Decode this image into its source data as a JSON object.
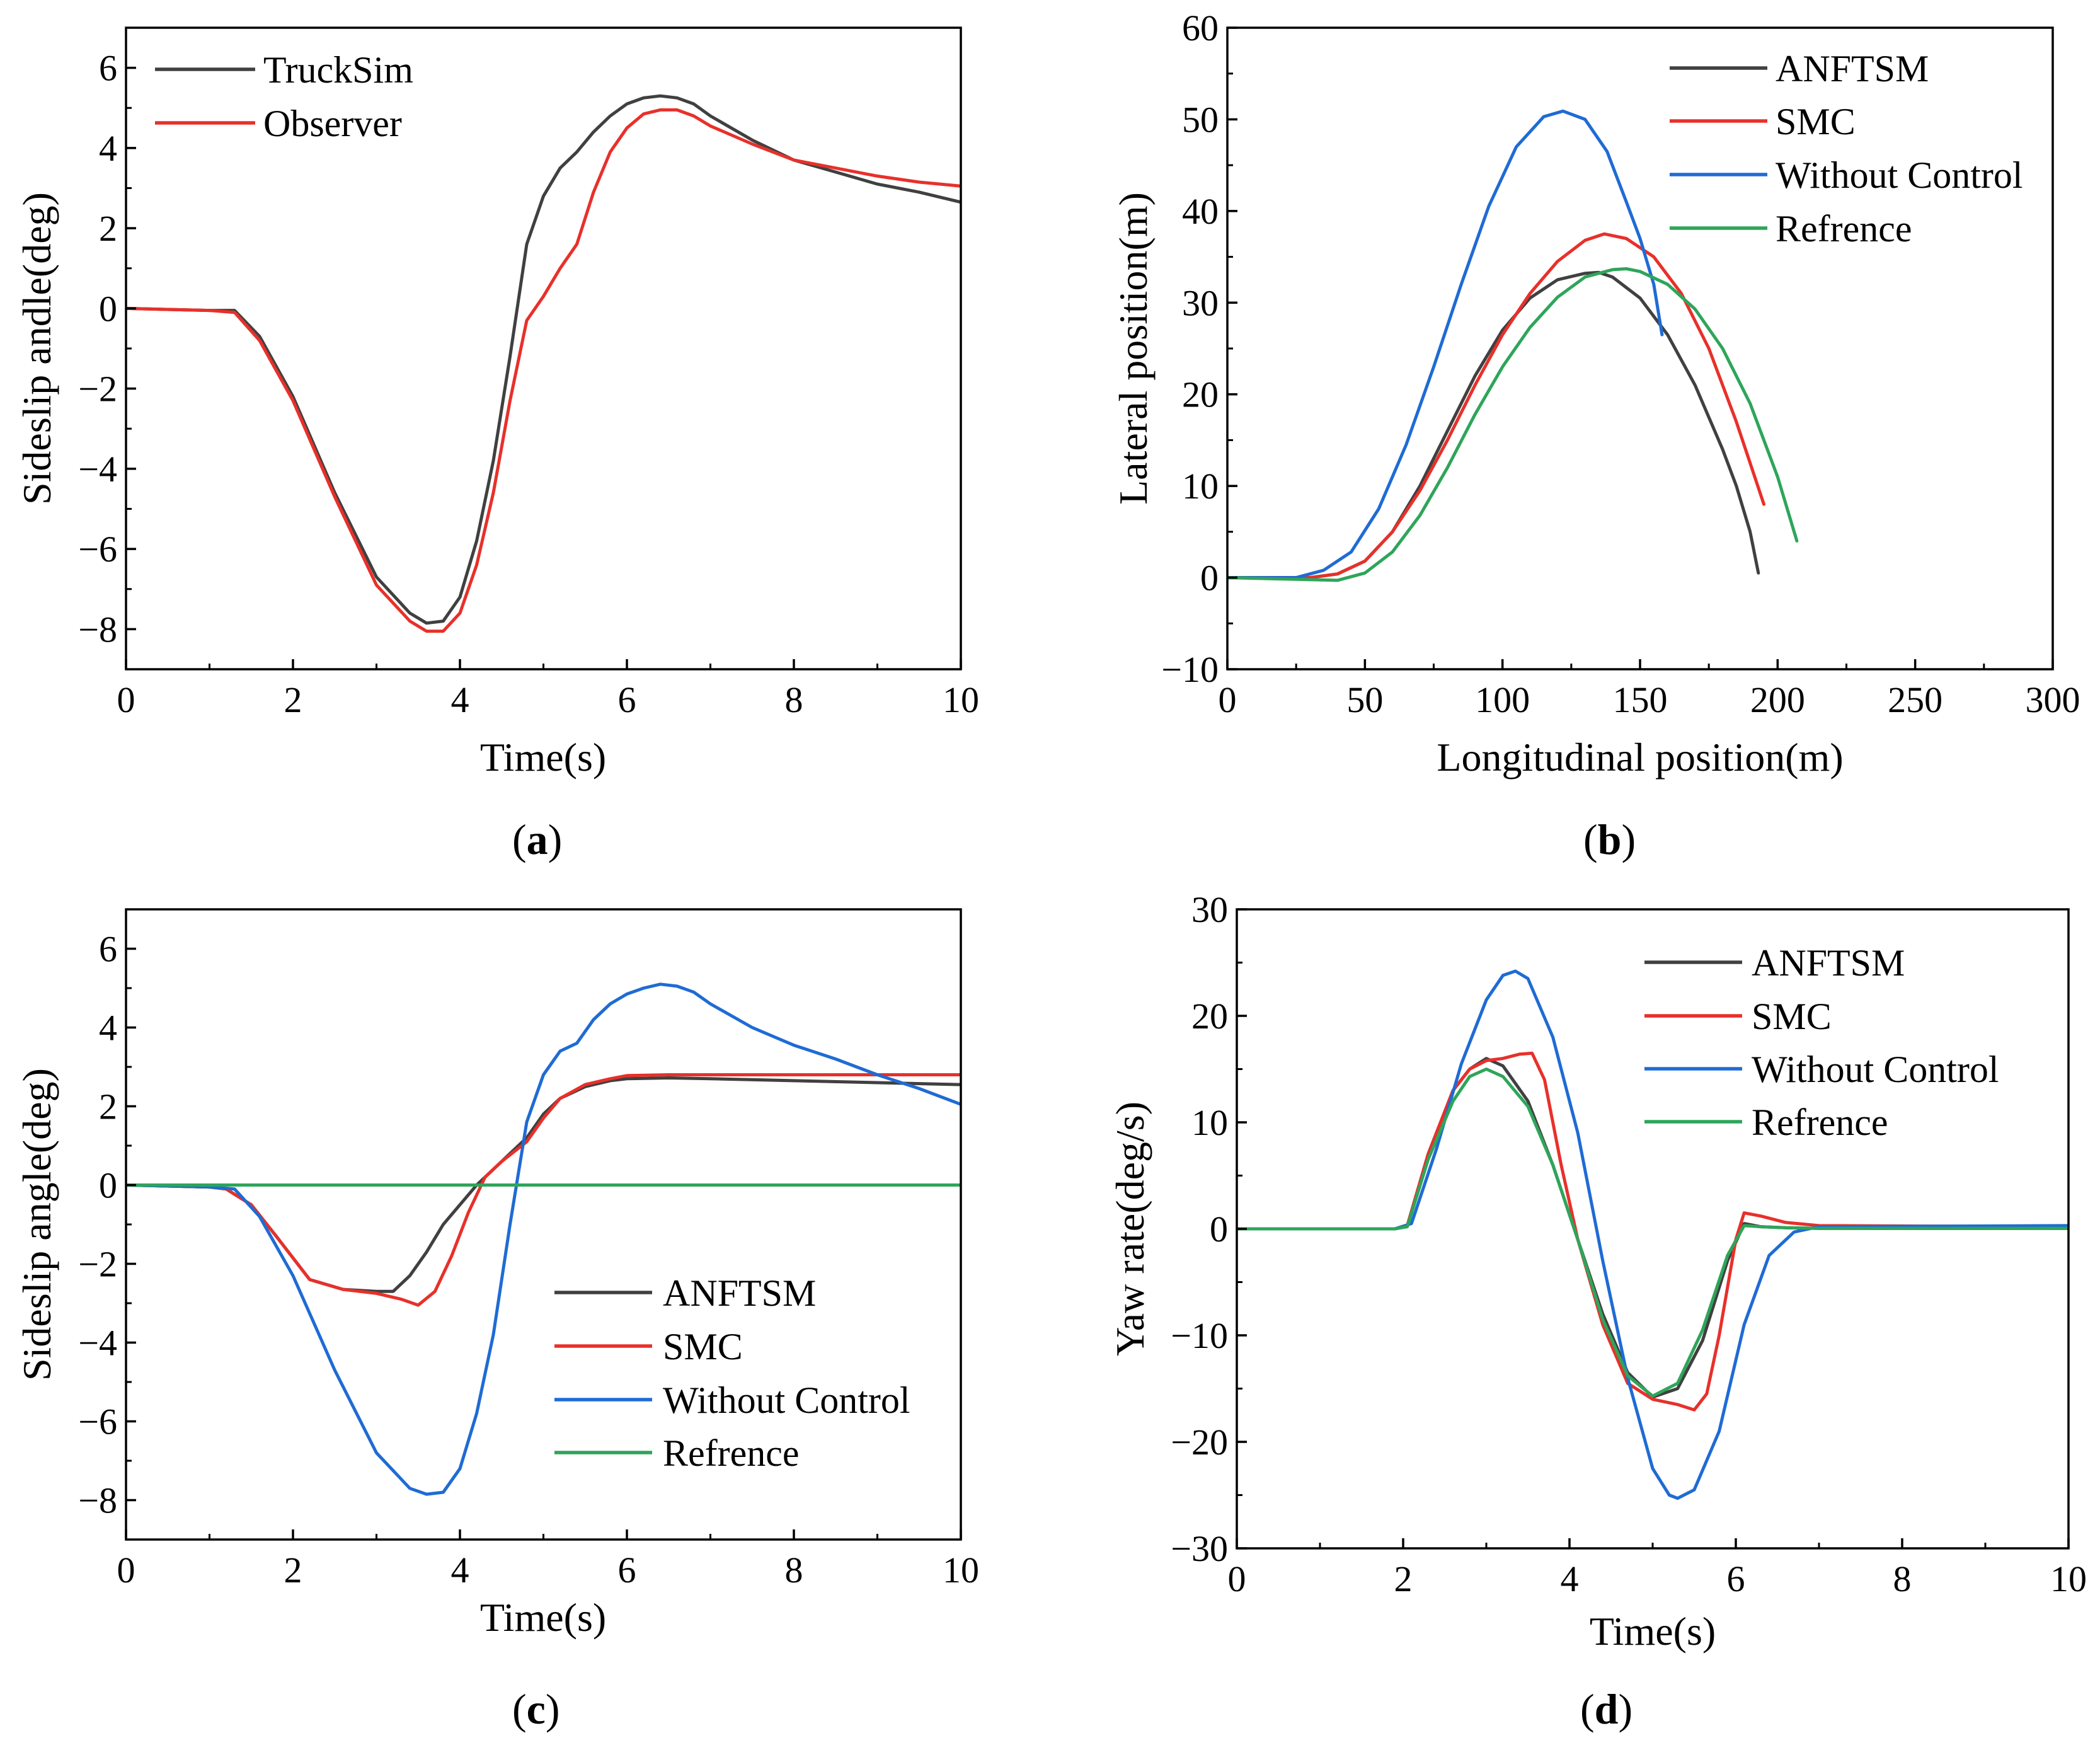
{
  "chart_data": [
    {
      "id": "a",
      "type": "line",
      "caption": "(a)",
      "caption_letter": "a",
      "xlabel": "Time(s)",
      "ylabel": "Sideslip andle(deg)",
      "xlim": [
        0,
        10
      ],
      "ylim": [
        -9,
        7
      ],
      "xticks": [
        0,
        2,
        4,
        6,
        8,
        10
      ],
      "yticks": [
        -8,
        -6,
        -4,
        -2,
        0,
        2,
        4,
        6
      ],
      "xtick_labels": [
        "0",
        "2",
        "4",
        "6",
        "8",
        "10"
      ],
      "ytick_labels": [
        "−8",
        "−6",
        "−4",
        "−2",
        "0",
        "2",
        "4",
        "6"
      ],
      "legend_position": "top-left",
      "series": [
        {
          "name": "TruckSim",
          "color": "#404040",
          "x": [
            0,
            1.0,
            1.3,
            1.6,
            2.0,
            2.5,
            3.0,
            3.4,
            3.6,
            3.8,
            4.0,
            4.2,
            4.4,
            4.6,
            4.8,
            5.0,
            5.2,
            5.4,
            5.6,
            5.8,
            6.0,
            6.2,
            6.4,
            6.6,
            6.8,
            7.0,
            7.5,
            8.0,
            8.5,
            9.0,
            9.5,
            10.0
          ],
          "y": [
            0,
            -0.05,
            -0.05,
            -0.7,
            -2.2,
            -4.6,
            -6.7,
            -7.6,
            -7.85,
            -7.8,
            -7.2,
            -5.8,
            -3.8,
            -1.2,
            1.6,
            2.8,
            3.5,
            3.9,
            4.4,
            4.8,
            5.1,
            5.25,
            5.3,
            5.25,
            5.1,
            4.8,
            4.2,
            3.7,
            3.4,
            3.1,
            2.9,
            2.65
          ]
        },
        {
          "name": "Observer",
          "color": "#e8302a",
          "x": [
            0,
            1.0,
            1.3,
            1.6,
            2.0,
            2.5,
            3.0,
            3.4,
            3.6,
            3.8,
            4.0,
            4.2,
            4.4,
            4.6,
            4.8,
            5.0,
            5.2,
            5.4,
            5.6,
            5.8,
            6.0,
            6.2,
            6.4,
            6.6,
            6.8,
            7.0,
            7.5,
            8.0,
            8.5,
            9.0,
            9.5,
            10.0
          ],
          "y": [
            0,
            -0.05,
            -0.1,
            -0.8,
            -2.3,
            -4.7,
            -6.9,
            -7.8,
            -8.05,
            -8.05,
            -7.6,
            -6.4,
            -4.6,
            -2.3,
            -0.3,
            0.3,
            1.0,
            1.6,
            2.9,
            3.9,
            4.5,
            4.85,
            4.95,
            4.95,
            4.8,
            4.55,
            4.1,
            3.7,
            3.5,
            3.3,
            3.15,
            3.05
          ]
        }
      ]
    },
    {
      "id": "b",
      "type": "line",
      "caption": "(b)",
      "caption_letter": "b",
      "xlabel": "Longitudinal position(m)",
      "ylabel": "Lateral position(m)",
      "xlim": [
        0,
        300
      ],
      "ylim": [
        -10,
        60
      ],
      "xticks": [
        0,
        50,
        100,
        150,
        200,
        250,
        300
      ],
      "yticks": [
        -10,
        0,
        10,
        20,
        30,
        40,
        50,
        60
      ],
      "xtick_labels": [
        "0",
        "50",
        "100",
        "150",
        "200",
        "250",
        "300"
      ],
      "ytick_labels": [
        "−10",
        "0",
        "10",
        "20",
        "30",
        "40",
        "50",
        "60"
      ],
      "legend_position": "top-right",
      "series": [
        {
          "name": "ANFTSM",
          "color": "#404040",
          "x": [
            0,
            30,
            40,
            50,
            60,
            70,
            80,
            90,
            100,
            110,
            120,
            130,
            135,
            140,
            150,
            160,
            170,
            180,
            185,
            190,
            193
          ],
          "y": [
            0,
            0,
            0.4,
            1.8,
            5,
            10,
            16,
            22,
            27,
            30.5,
            32.5,
            33.2,
            33.3,
            32.8,
            30.5,
            26.5,
            21,
            14,
            10,
            5,
            0.5
          ]
        },
        {
          "name": "SMC",
          "color": "#e8302a",
          "x": [
            0,
            30,
            40,
            50,
            60,
            70,
            80,
            90,
            100,
            110,
            120,
            130,
            137,
            145,
            155,
            165,
            175,
            185,
            190,
            195
          ],
          "y": [
            0,
            0,
            0.4,
            1.8,
            5,
            9.5,
            15,
            21,
            26.5,
            31,
            34.5,
            36.8,
            37.5,
            37,
            35,
            31,
            25,
            17,
            12.5,
            8
          ]
        },
        {
          "name": "Without Control",
          "color": "#1f6bd4",
          "x": [
            0,
            25,
            35,
            45,
            55,
            65,
            75,
            85,
            95,
            105,
            115,
            122,
            130,
            138,
            145,
            150,
            155,
            158
          ],
          "y": [
            0,
            0,
            0.8,
            2.8,
            7.5,
            14.5,
            23,
            32,
            40.5,
            47,
            50.3,
            50.9,
            50,
            46.5,
            41,
            37,
            32,
            26.5
          ]
        },
        {
          "name": "Refrence",
          "color": "#2ea55a",
          "x": [
            0,
            40,
            50,
            60,
            70,
            80,
            90,
            100,
            110,
            120,
            130,
            140,
            145,
            150,
            160,
            170,
            180,
            190,
            200,
            207
          ],
          "y": [
            0,
            -0.3,
            0.5,
            2.8,
            6.8,
            12,
            17.8,
            23,
            27.3,
            30.6,
            32.8,
            33.6,
            33.7,
            33.4,
            32,
            29.3,
            25,
            19,
            11,
            4
          ]
        }
      ]
    },
    {
      "id": "c",
      "type": "line",
      "caption": "(c)",
      "caption_letter": "c",
      "xlabel": "Time(s)",
      "ylabel": "Sideslip angle(deg)",
      "xlim": [
        0,
        10
      ],
      "ylim": [
        -9,
        7
      ],
      "xticks": [
        0,
        2,
        4,
        6,
        8,
        10
      ],
      "yticks": [
        -8,
        -6,
        -4,
        -2,
        0,
        2,
        4,
        6
      ],
      "xtick_labels": [
        "0",
        "2",
        "4",
        "6",
        "8",
        "10"
      ],
      "ytick_labels": [
        "−8",
        "−6",
        "−4",
        "−2",
        "0",
        "2",
        "4",
        "6"
      ],
      "legend_position": "lower-right",
      "series": [
        {
          "name": "ANFTSM",
          "color": "#404040",
          "x": [
            0,
            1.0,
            1.2,
            1.5,
            1.8,
            2.2,
            2.6,
            3.0,
            3.2,
            3.4,
            3.6,
            3.8,
            4.0,
            4.2,
            4.5,
            4.8,
            5.0,
            5.2,
            5.5,
            5.8,
            6.0,
            6.5,
            7.0,
            8.0,
            9.0,
            10.0
          ],
          "y": [
            0,
            -0.05,
            -0.1,
            -0.5,
            -1.3,
            -2.4,
            -2.65,
            -2.7,
            -2.7,
            -2.3,
            -1.7,
            -1.0,
            -0.5,
            0,
            0.6,
            1.2,
            1.8,
            2.2,
            2.5,
            2.65,
            2.7,
            2.72,
            2.7,
            2.65,
            2.6,
            2.55
          ]
        },
        {
          "name": "SMC",
          "color": "#e8302a",
          "x": [
            0,
            1.0,
            1.2,
            1.5,
            1.8,
            2.2,
            2.6,
            3.0,
            3.3,
            3.5,
            3.7,
            3.9,
            4.1,
            4.3,
            4.5,
            4.8,
            5.0,
            5.2,
            5.5,
            5.8,
            6.0,
            6.5,
            7.0,
            8.0,
            9.0,
            10.0
          ],
          "y": [
            0,
            -0.05,
            -0.1,
            -0.5,
            -1.3,
            -2.4,
            -2.65,
            -2.75,
            -2.9,
            -3.05,
            -2.7,
            -1.8,
            -0.7,
            0.2,
            0.6,
            1.1,
            1.7,
            2.2,
            2.55,
            2.7,
            2.78,
            2.8,
            2.8,
            2.8,
            2.8,
            2.8
          ]
        },
        {
          "name": "Without Control",
          "color": "#1f6bd4",
          "x": [
            0,
            1.0,
            1.3,
            1.6,
            2.0,
            2.5,
            3.0,
            3.4,
            3.6,
            3.8,
            4.0,
            4.2,
            4.4,
            4.6,
            4.8,
            5.0,
            5.2,
            5.4,
            5.6,
            5.8,
            6.0,
            6.2,
            6.4,
            6.6,
            6.8,
            7.0,
            7.5,
            8.0,
            8.5,
            9.0,
            9.5,
            10.0
          ],
          "y": [
            0,
            -0.05,
            -0.1,
            -0.8,
            -2.3,
            -4.7,
            -6.8,
            -7.7,
            -7.85,
            -7.8,
            -7.2,
            -5.8,
            -3.8,
            -1.0,
            1.6,
            2.8,
            3.4,
            3.6,
            4.2,
            4.6,
            4.85,
            5.0,
            5.1,
            5.05,
            4.9,
            4.6,
            4.0,
            3.55,
            3.2,
            2.8,
            2.45,
            2.05
          ]
        },
        {
          "name": "Refrence",
          "color": "#2ea55a",
          "x": [
            0,
            10
          ],
          "y": [
            0,
            0
          ]
        }
      ]
    },
    {
      "id": "d",
      "type": "line",
      "caption": "(d)",
      "caption_letter": "d",
      "xlabel": "Time(s)",
      "ylabel": "Yaw rate(deg/s)",
      "xlim": [
        0,
        10
      ],
      "ylim": [
        -30,
        30
      ],
      "xticks": [
        0,
        2,
        4,
        6,
        8,
        10
      ],
      "yticks": [
        -30,
        -20,
        -10,
        0,
        10,
        20,
        30
      ],
      "xtick_labels": [
        "0",
        "2",
        "4",
        "6",
        "8",
        "10"
      ],
      "ytick_labels": [
        "−30",
        "−20",
        "−10",
        "0",
        "10",
        "20",
        "30"
      ],
      "legend_position": "top-right",
      "series": [
        {
          "name": "ANFTSM",
          "color": "#404040",
          "x": [
            0,
            1.9,
            2.05,
            2.3,
            2.6,
            2.8,
            3.0,
            3.2,
            3.5,
            3.8,
            4.1,
            4.4,
            4.7,
            5.0,
            5.3,
            5.6,
            5.9,
            6.1,
            6.3,
            6.6,
            7.0,
            10.0
          ],
          "y": [
            0,
            0,
            0.3,
            7,
            13,
            15,
            16,
            15.3,
            12,
            6,
            -1,
            -8,
            -13.5,
            -15.8,
            -15,
            -10.5,
            -3,
            0.5,
            0.2,
            0.1,
            0.05,
            0.05
          ]
        },
        {
          "name": "SMC",
          "color": "#e8302a",
          "x": [
            0,
            1.9,
            2.05,
            2.3,
            2.6,
            2.8,
            3.0,
            3.2,
            3.4,
            3.55,
            3.7,
            3.9,
            4.1,
            4.4,
            4.7,
            5.0,
            5.3,
            5.5,
            5.65,
            5.8,
            6.0,
            6.1,
            6.3,
            6.6,
            7.0,
            10.0
          ],
          "y": [
            0,
            0,
            0.3,
            7,
            13,
            15,
            15.8,
            16,
            16.4,
            16.5,
            14,
            6,
            -1,
            -9,
            -14.5,
            -16,
            -16.5,
            -17,
            -15.5,
            -10,
            -1,
            1.5,
            1.2,
            0.6,
            0.3,
            0.2
          ]
        },
        {
          "name": "Without Control",
          "color": "#1f6bd4",
          "x": [
            0,
            1.9,
            2.1,
            2.4,
            2.7,
            3.0,
            3.2,
            3.35,
            3.5,
            3.8,
            4.1,
            4.4,
            4.7,
            5.0,
            5.2,
            5.3,
            5.5,
            5.8,
            6.1,
            6.4,
            6.7,
            7.0,
            10.0
          ],
          "y": [
            0,
            0,
            0.5,
            7.5,
            15.5,
            21.5,
            23.8,
            24.2,
            23.5,
            18,
            9,
            -3,
            -14,
            -22.5,
            -25,
            -25.3,
            -24.5,
            -19,
            -9,
            -2.5,
            -0.3,
            0.2,
            0.3
          ]
        },
        {
          "name": "Refrence",
          "color": "#2ea55a",
          "x": [
            0,
            1.9,
            2.05,
            2.3,
            2.6,
            2.8,
            3.0,
            3.2,
            3.5,
            3.8,
            4.1,
            4.4,
            4.7,
            5.0,
            5.3,
            5.6,
            5.9,
            6.1,
            6.3,
            6.6,
            7.0,
            10.0
          ],
          "y": [
            0,
            0,
            0.2,
            6.5,
            12,
            14.3,
            15,
            14.3,
            11.5,
            6,
            -1,
            -8.5,
            -13.8,
            -15.7,
            -14.5,
            -9.5,
            -2.5,
            0.3,
            0.2,
            0.1,
            0.05,
            0.05
          ]
        }
      ]
    }
  ]
}
